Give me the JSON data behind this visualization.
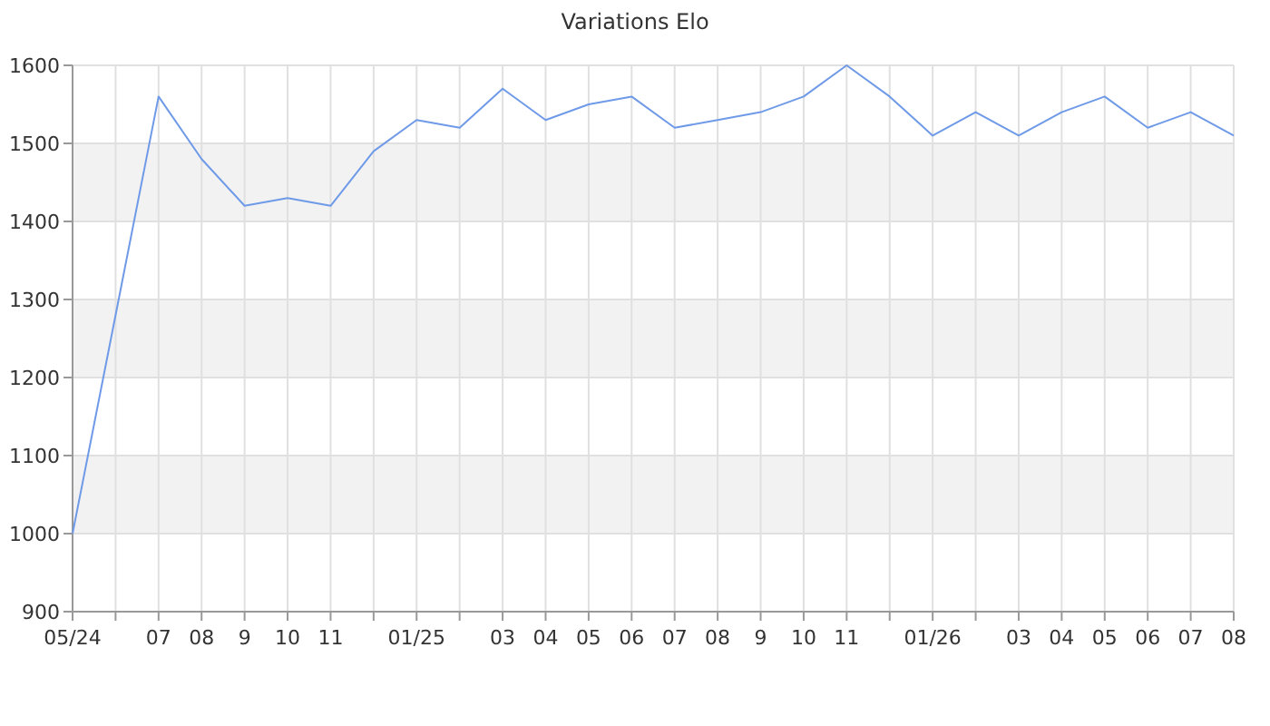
{
  "chart_data": {
    "type": "line",
    "title": "Variations Elo",
    "categories": [
      "05/24",
      null,
      "07",
      "08",
      "9",
      "10",
      "11",
      null,
      "01/25",
      null,
      "03",
      "04",
      "05",
      "06",
      "07",
      "08",
      "9",
      "10",
      "11",
      null,
      "01/26",
      null,
      "03",
      "04",
      "05",
      "06",
      "07",
      "08"
    ],
    "series": [
      {
        "color": "#6f9ae8",
        "values": [
          1000,
          1280,
          1560,
          1480,
          1420,
          1430,
          1420,
          1490,
          1530,
          1520,
          1570,
          1530,
          1550,
          1560,
          1520,
          1530,
          1540,
          1560,
          1600,
          1560,
          1510,
          1540,
          1510,
          1540,
          1560,
          1520,
          1540,
          1510
        ]
      }
    ],
    "ylim": [
      900,
      1600
    ],
    "yticks": [
      900,
      1000,
      1100,
      1200,
      1300,
      1400,
      1500,
      1600
    ],
    "grid": true,
    "marker": "none",
    "line_style": "solid"
  }
}
